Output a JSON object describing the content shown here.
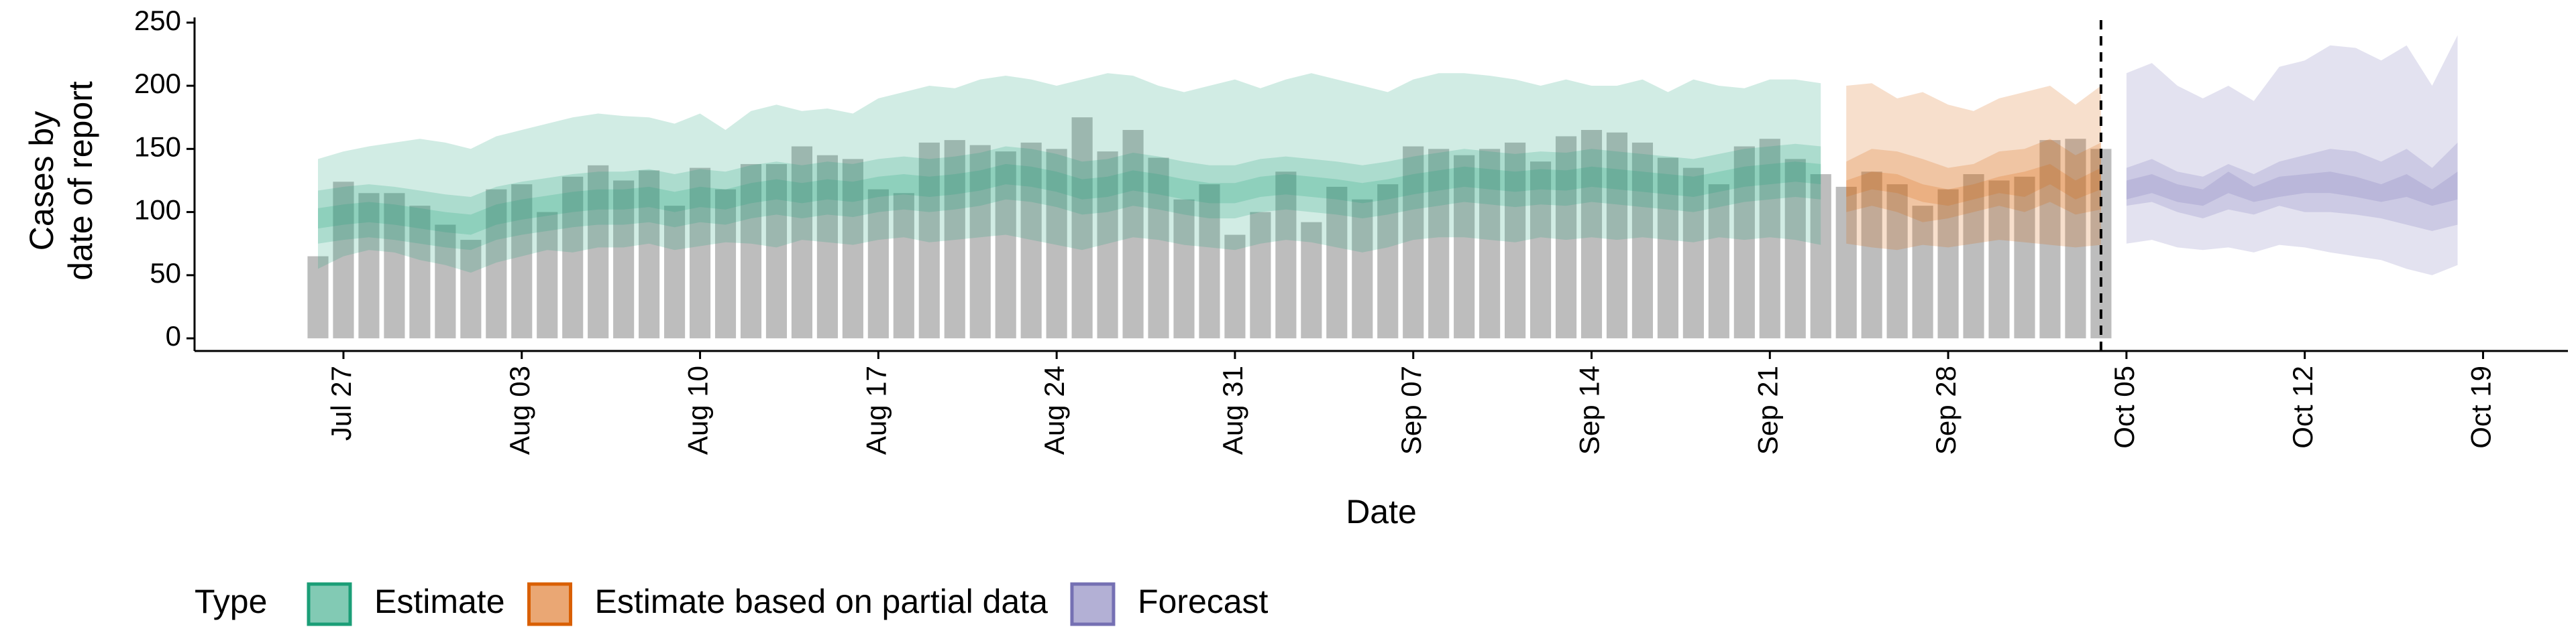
{
  "chart_data": {
    "type": "bar",
    "y_label": [
      "Cases by",
      "date of report"
    ],
    "x_label": "Date",
    "legend_title": "Type",
    "ylim": [
      -10,
      252
    ],
    "yticks": [
      0,
      50,
      100,
      150,
      200,
      250
    ],
    "x": [
      "Jul 26",
      "Jul 27",
      "Jul 28",
      "Jul 29",
      "Jul 30",
      "Jul 31",
      "Aug 01",
      "Aug 02",
      "Aug 03",
      "Aug 04",
      "Aug 05",
      "Aug 06",
      "Aug 07",
      "Aug 08",
      "Aug 09",
      "Aug 10",
      "Aug 11",
      "Aug 12",
      "Aug 13",
      "Aug 14",
      "Aug 15",
      "Aug 16",
      "Aug 17",
      "Aug 18",
      "Aug 19",
      "Aug 20",
      "Aug 21",
      "Aug 22",
      "Aug 23",
      "Aug 24",
      "Aug 25",
      "Aug 26",
      "Aug 27",
      "Aug 28",
      "Aug 29",
      "Aug 30",
      "Aug 31",
      "Sep 01",
      "Sep 02",
      "Sep 03",
      "Sep 04",
      "Sep 05",
      "Sep 06",
      "Sep 07",
      "Sep 08",
      "Sep 09",
      "Sep 10",
      "Sep 11",
      "Sep 12",
      "Sep 13",
      "Sep 14",
      "Sep 15",
      "Sep 16",
      "Sep 17",
      "Sep 18",
      "Sep 19",
      "Sep 20",
      "Sep 21",
      "Sep 22",
      "Sep 23",
      "Sep 24",
      "Sep 25",
      "Sep 26",
      "Sep 27",
      "Sep 28",
      "Sep 29",
      "Sep 30",
      "Oct 01",
      "Oct 02",
      "Oct 03",
      "Oct 04",
      "Oct 05",
      "Oct 06",
      "Oct 07",
      "Oct 08",
      "Oct 09",
      "Oct 10",
      "Oct 11",
      "Oct 12",
      "Oct 13",
      "Oct 14",
      "Oct 15",
      "Oct 16",
      "Oct 17",
      "Oct 18",
      "Oct 19"
    ],
    "xticks": [
      "Jul 27",
      "Aug 03",
      "Aug 10",
      "Aug 17",
      "Aug 24",
      "Aug 31",
      "Sep 07",
      "Sep 14",
      "Sep 21",
      "Sep 28",
      "Oct 05",
      "Oct 12",
      "Oct 19"
    ],
    "vline": "Oct 04",
    "bars": {
      "color": "#bdbdbd",
      "values": [
        65,
        124,
        115,
        115,
        105,
        90,
        78,
        118,
        122,
        100,
        128,
        137,
        125,
        133,
        105,
        135,
        118,
        138,
        138,
        152,
        145,
        142,
        118,
        115,
        155,
        157,
        153,
        148,
        155,
        150,
        175,
        148,
        165,
        143,
        110,
        122,
        82,
        100,
        132,
        92,
        120,
        110,
        122,
        152,
        150,
        145,
        150,
        155,
        140,
        160,
        165,
        163,
        155,
        143,
        135,
        122,
        152,
        158,
        142,
        130,
        120,
        132,
        122,
        105,
        118,
        130,
        125,
        128,
        157,
        158,
        150,
        null,
        null,
        null,
        null,
        null,
        null,
        null,
        null,
        null,
        null,
        null,
        null,
        null,
        null,
        null
      ]
    },
    "series": [
      {
        "name": "Estimate",
        "color": "#1b9e77",
        "x": [
          "Jul 26",
          "Jul 27",
          "Jul 28",
          "Jul 29",
          "Jul 30",
          "Jul 31",
          "Aug 01",
          "Aug 02",
          "Aug 03",
          "Aug 04",
          "Aug 05",
          "Aug 06",
          "Aug 07",
          "Aug 08",
          "Aug 09",
          "Aug 10",
          "Aug 11",
          "Aug 12",
          "Aug 13",
          "Aug 14",
          "Aug 15",
          "Aug 16",
          "Aug 17",
          "Aug 18",
          "Aug 19",
          "Aug 20",
          "Aug 21",
          "Aug 22",
          "Aug 23",
          "Aug 24",
          "Aug 25",
          "Aug 26",
          "Aug 27",
          "Aug 28",
          "Aug 29",
          "Aug 30",
          "Aug 31",
          "Sep 01",
          "Sep 02",
          "Sep 03",
          "Sep 04",
          "Sep 05",
          "Sep 06",
          "Sep 07",
          "Sep 08",
          "Sep 09",
          "Sep 10",
          "Sep 11",
          "Sep 12",
          "Sep 13",
          "Sep 14",
          "Sep 15",
          "Sep 16",
          "Sep 17",
          "Sep 18",
          "Sep 19",
          "Sep 20",
          "Sep 21",
          "Sep 22",
          "Sep 23"
        ],
        "bands": [
          {
            "upper": [
              142,
              148,
              152,
              155,
              158,
              155,
              150,
              160,
              165,
              170,
              175,
              178,
              176,
              175,
              170,
              178,
              165,
              180,
              185,
              180,
              182,
              178,
              190,
              195,
              200,
              198,
              205,
              208,
              205,
              200,
              205,
              210,
              208,
              200,
              195,
              200,
              205,
              198,
              205,
              210,
              205,
              200,
              195,
              205,
              210,
              210,
              208,
              205,
              200,
              205,
              200,
              200,
              205,
              195,
              205,
              200,
              198,
              205,
              205,
              202
            ],
            "lower": [
              55,
              65,
              70,
              68,
              62,
              58,
              52,
              60,
              65,
              70,
              68,
              72,
              72,
              75,
              70,
              73,
              76,
              75,
              72,
              78,
              76,
              74,
              78,
              80,
              76,
              78,
              80,
              82,
              78,
              74,
              70,
              75,
              80,
              78,
              74,
              72,
              70,
              75,
              78,
              76,
              72,
              68,
              72,
              78,
              80,
              80,
              78,
              76,
              80,
              78,
              80,
              78,
              80,
              78,
              76,
              80,
              78,
              80,
              78,
              74
            ]
          },
          {
            "upper": [
              117,
              120,
              122,
              120,
              117,
              114,
              112,
              120,
              124,
              127,
              130,
              132,
              132,
              134,
              130,
              134,
              132,
              137,
              140,
              137,
              140,
              138,
              142,
              144,
              142,
              144,
              147,
              152,
              150,
              146,
              140,
              142,
              147,
              144,
              140,
              137,
              137,
              142,
              144,
              142,
              140,
              137,
              140,
              144,
              147,
              150,
              148,
              146,
              148,
              147,
              150,
              148,
              146,
              144,
              142,
              146,
              150,
              152,
              154,
              152
            ],
            "lower": [
              75,
              78,
              80,
              78,
              75,
              72,
              70,
              78,
              82,
              85,
              88,
              90,
              90,
              92,
              88,
              92,
              90,
              95,
              98,
              95,
              98,
              96,
              100,
              102,
              100,
              102,
              105,
              110,
              108,
              104,
              98,
              100,
              105,
              102,
              98,
              95,
              95,
              100,
              102,
              100,
              98,
              95,
              98,
              102,
              105,
              108,
              106,
              104,
              106,
              105,
              108,
              106,
              104,
              102,
              100,
              104,
              108,
              110,
              112,
              110
            ]
          },
          {
            "upper": [
              103,
              106,
              108,
              106,
              103,
              100,
              98,
              106,
              110,
              113,
              116,
              118,
              118,
              120,
              116,
              120,
              118,
              123,
              126,
              123,
              126,
              124,
              128,
              130,
              128,
              130,
              133,
              138,
              136,
              132,
              126,
              128,
              133,
              130,
              126,
              123,
              123,
              128,
              130,
              128,
              126,
              123,
              126,
              130,
              133,
              136,
              134,
              132,
              134,
              133,
              136,
              134,
              132,
              130,
              128,
              132,
              136,
              138,
              140,
              138
            ],
            "lower": [
              87,
              90,
              92,
              90,
              87,
              84,
              82,
              90,
              94,
              97,
              100,
              102,
              102,
              104,
              100,
              104,
              102,
              107,
              110,
              107,
              110,
              108,
              112,
              114,
              112,
              114,
              117,
              122,
              120,
              116,
              110,
              112,
              117,
              114,
              110,
              107,
              107,
              112,
              114,
              112,
              110,
              107,
              110,
              114,
              117,
              120,
              118,
              116,
              118,
              117,
              120,
              118,
              116,
              114,
              112,
              116,
              120,
              122,
              124,
              122
            ]
          }
        ]
      },
      {
        "name": "Estimate based on partial data",
        "color": "#d95f02",
        "x": [
          "Sep 24",
          "Sep 25",
          "Sep 26",
          "Sep 27",
          "Sep 28",
          "Sep 29",
          "Sep 30",
          "Oct 01",
          "Oct 02",
          "Oct 03",
          "Oct 04"
        ],
        "bands": [
          {
            "upper": [
              200,
              202,
              190,
              195,
              185,
              180,
              190,
              195,
              200,
              185,
              200
            ],
            "lower": [
              75,
              72,
              70,
              74,
              72,
              75,
              78,
              76,
              74,
              72,
              74
            ]
          },
          {
            "upper": [
              140,
              150,
              148,
              142,
              135,
              138,
              148,
              150,
              158,
              145,
              155
            ],
            "lower": [
              100,
              105,
              100,
              92,
              95,
              100,
              105,
              100,
              108,
              98,
              102
            ]
          },
          {
            "upper": [
              125,
              132,
              130,
              122,
              118,
              122,
              128,
              132,
              138,
              125,
              135
            ],
            "lower": [
              112,
              118,
              115,
              108,
              105,
              110,
              115,
              112,
              122,
              110,
              118
            ]
          }
        ]
      },
      {
        "name": "Forecast",
        "color": "#7570b3",
        "x": [
          "Oct 05",
          "Oct 06",
          "Oct 07",
          "Oct 08",
          "Oct 09",
          "Oct 10",
          "Oct 11",
          "Oct 12",
          "Oct 13",
          "Oct 14",
          "Oct 15",
          "Oct 16",
          "Oct 17",
          "Oct 18"
        ],
        "bands": [
          {
            "upper": [
              210,
              218,
              200,
              190,
              200,
              188,
              215,
              220,
              232,
              230,
              220,
              232,
              200,
              240
            ],
            "lower": [
              75,
              78,
              72,
              70,
              72,
              68,
              74,
              72,
              68,
              65,
              62,
              55,
              50,
              58
            ]
          },
          {
            "upper": [
              135,
              142,
              132,
              128,
              138,
              130,
              140,
              145,
              150,
              148,
              140,
              150,
              135,
              155
            ],
            "lower": [
              105,
              108,
              100,
              95,
              102,
              98,
              105,
              100,
              100,
              98,
              95,
              90,
              85,
              90
            ]
          },
          {
            "upper": [
              125,
              130,
              122,
              118,
              132,
              120,
              128,
              130,
              132,
              128,
              122,
              130,
              118,
              132
            ],
            "lower": [
              110,
              115,
              108,
              105,
              115,
              108,
              112,
              115,
              115,
              112,
              108,
              112,
              105,
              110
            ]
          }
        ]
      }
    ]
  }
}
